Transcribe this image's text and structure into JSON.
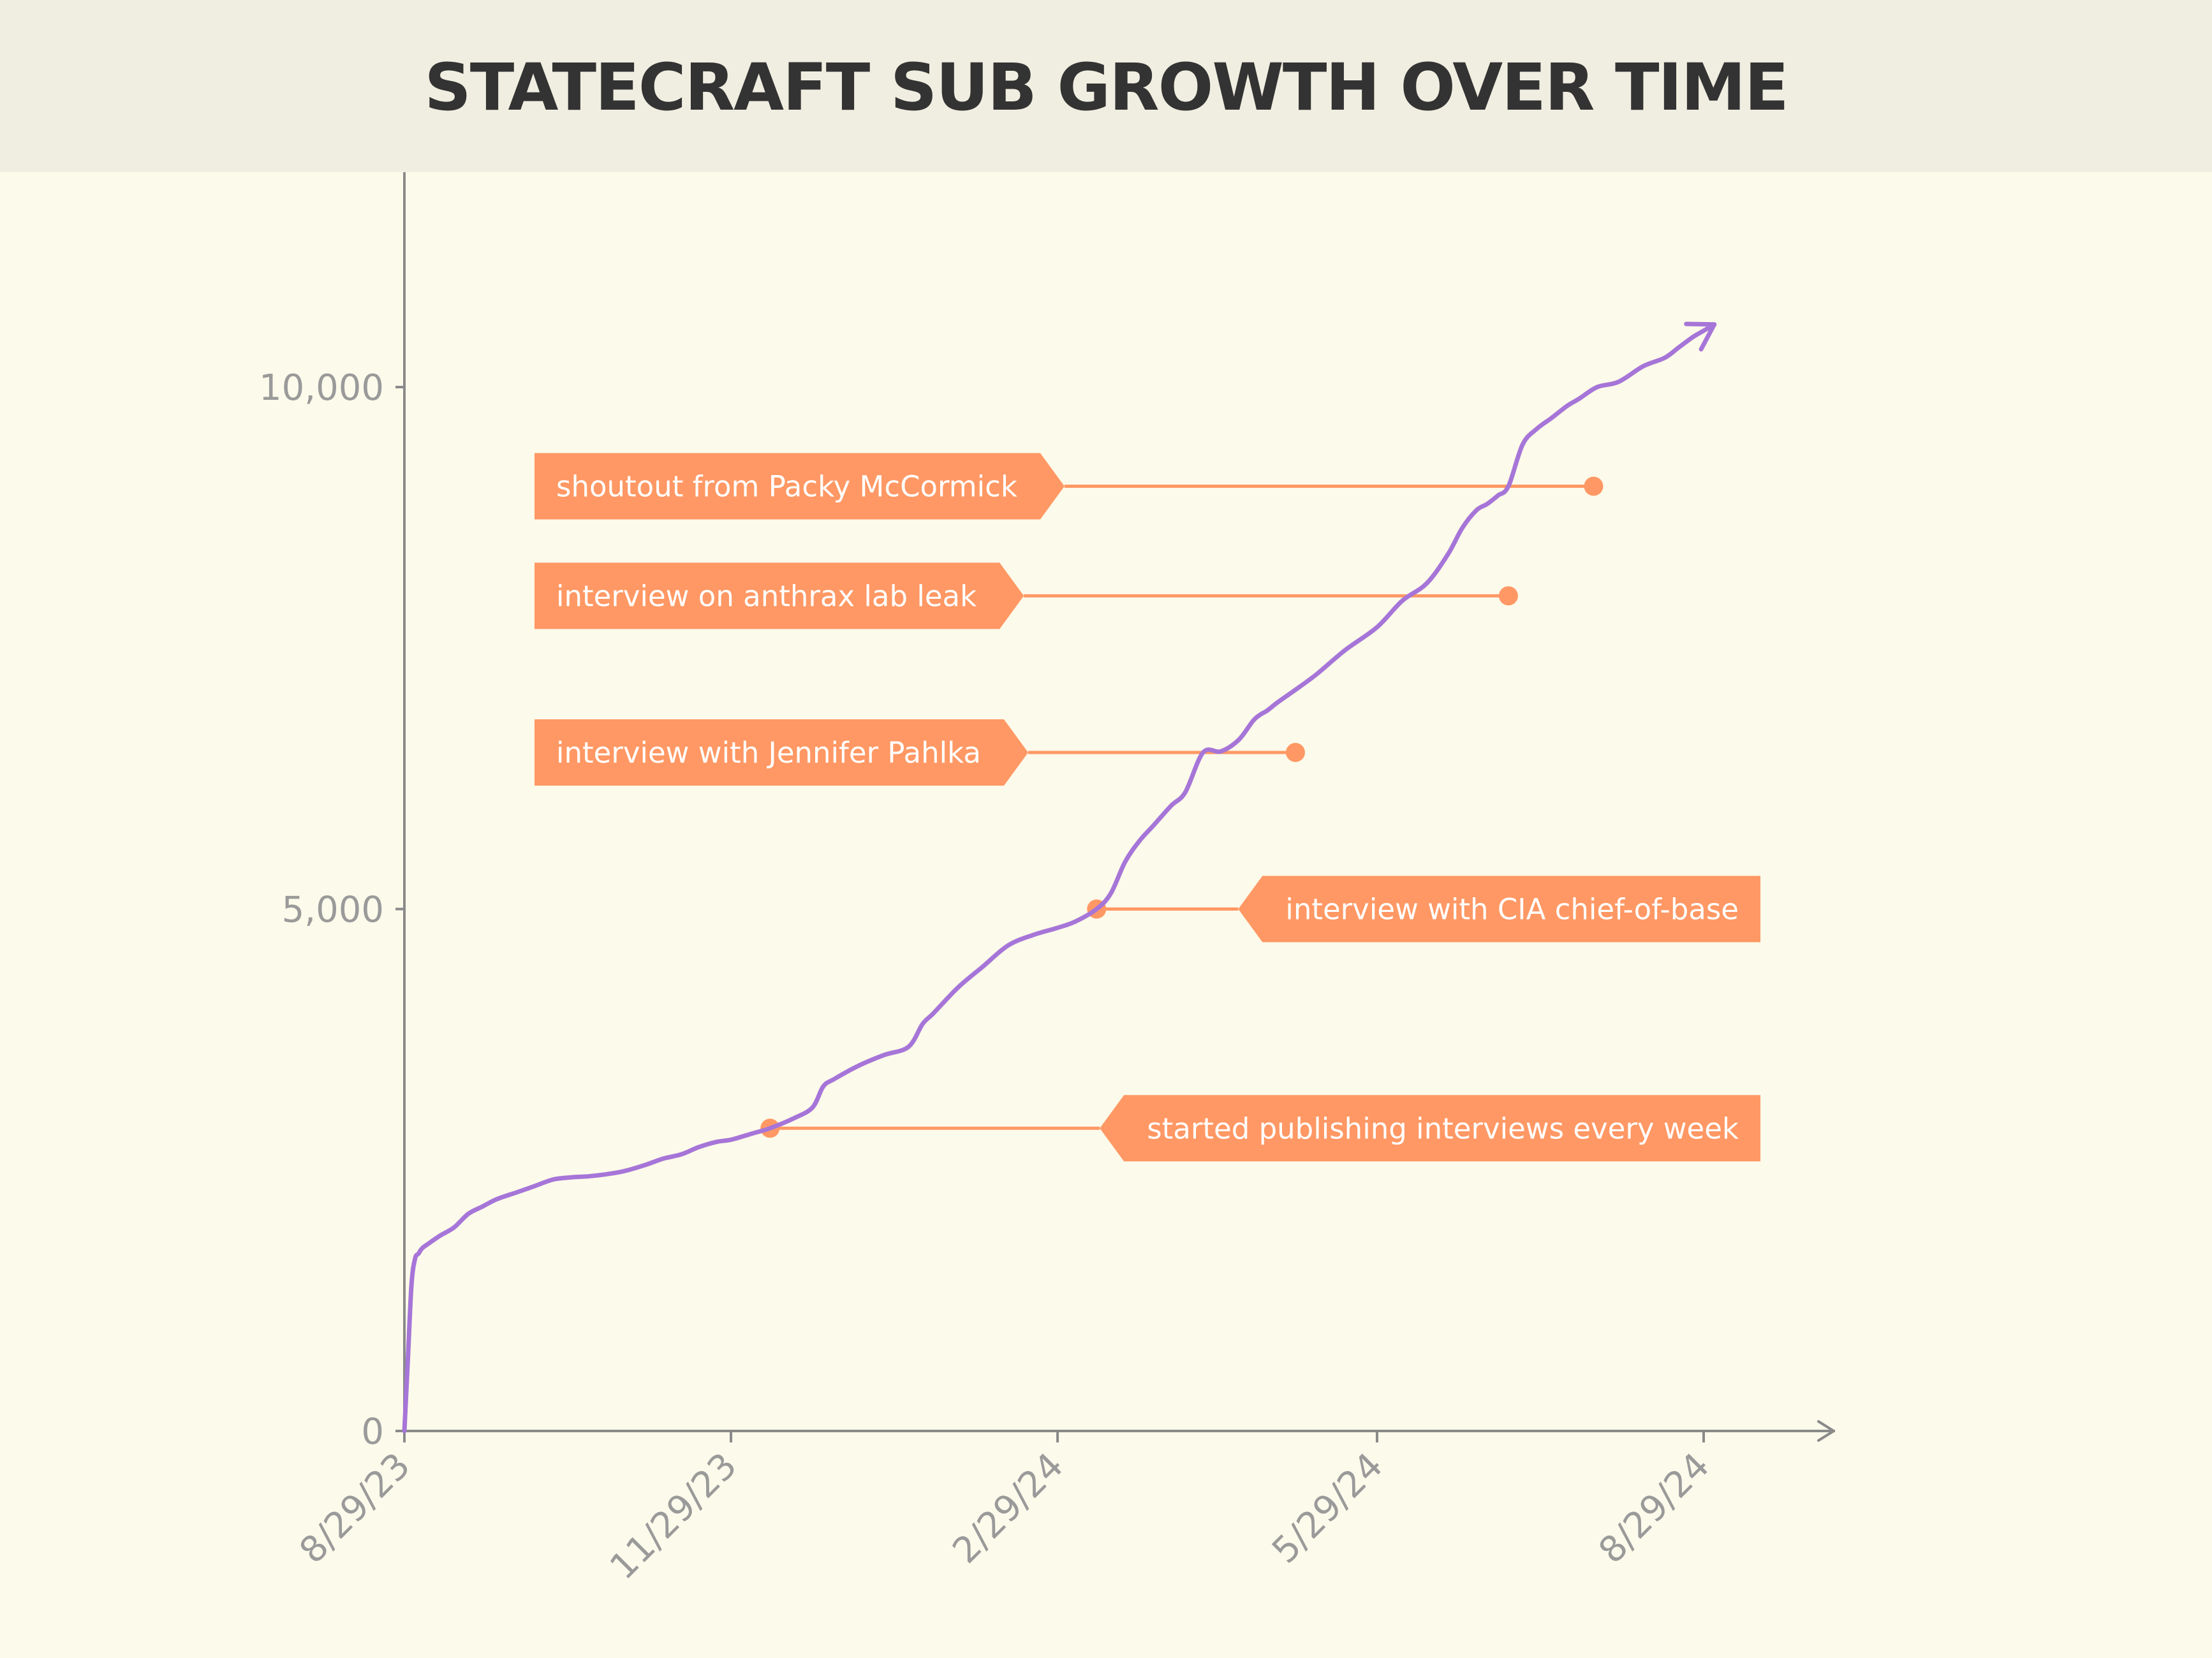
{
  "chart_data": {
    "type": "line",
    "title": "STATECRAFT SUB GROWTH OVER TIME",
    "xlabel": "",
    "ylabel": "",
    "xlim": [
      "2023-08-29",
      "2024-10-05"
    ],
    "ylim": [
      0,
      12500
    ],
    "x_ticks": [
      "2023-08-29",
      "2023-11-29",
      "2024-02-29",
      "2024-05-29",
      "2024-08-29"
    ],
    "x_tick_labels": [
      "8/29/23",
      "11/29/23",
      "2/29/24",
      "5/29/24",
      "8/29/24"
    ],
    "y_ticks": [
      0,
      5000,
      10000
    ],
    "y_tick_labels": [
      "0",
      "5,000",
      "10,000"
    ],
    "grid": false,
    "legend": "none",
    "colors": {
      "line": "#A675D8",
      "annotation": "#FF9864",
      "axis": "#8A8A8A",
      "tick_text": "#9A9A9A",
      "title_band": "#F0EEE0",
      "background": "#FCFAEA",
      "title_text": "#333333"
    },
    "series": [
      {
        "x": [
          "2023-08-29",
          "2023-08-30",
          "2023-08-31",
          "2023-09-01",
          "2023-09-02",
          "2023-09-03",
          "2023-09-05",
          "2023-09-08",
          "2023-09-12",
          "2023-09-16",
          "2023-09-20",
          "2023-09-24",
          "2023-09-30",
          "2023-10-05",
          "2023-10-10",
          "2023-10-15",
          "2023-10-20",
          "2023-10-25",
          "2023-10-30",
          "2023-11-05",
          "2023-11-10",
          "2023-11-15",
          "2023-11-20",
          "2023-11-25",
          "2023-11-29",
          "2023-12-05",
          "2023-12-10",
          "2023-12-17",
          "2023-12-22",
          "2023-12-25",
          "2023-12-28",
          "2024-01-04",
          "2024-01-11",
          "2024-01-18",
          "2024-01-22",
          "2024-01-25",
          "2024-02-01",
          "2024-02-08",
          "2024-02-15",
          "2024-02-22",
          "2024-02-29",
          "2024-03-05",
          "2024-03-11",
          "2024-03-15",
          "2024-03-19",
          "2024-03-23",
          "2024-03-27",
          "2024-04-01",
          "2024-04-05",
          "2024-04-10",
          "2024-04-15",
          "2024-04-20",
          "2024-04-24",
          "2024-04-26",
          "2024-04-28",
          "2024-05-01",
          "2024-05-06",
          "2024-05-12",
          "2024-05-20",
          "2024-05-29",
          "2024-06-05",
          "2024-06-12",
          "2024-06-18",
          "2024-06-22",
          "2024-06-26",
          "2024-06-29",
          "2024-07-02",
          "2024-07-05",
          "2024-07-09",
          "2024-07-13",
          "2024-07-17",
          "2024-07-20",
          "2024-07-22",
          "2024-07-25",
          "2024-07-30",
          "2024-08-05",
          "2024-08-12",
          "2024-08-18",
          "2024-08-22",
          "2024-08-26",
          "2024-08-29",
          "2024-09-01"
        ],
        "values": [
          0,
          700,
          1400,
          1650,
          1700,
          1750,
          1800,
          1870,
          1950,
          2080,
          2150,
          2220,
          2290,
          2350,
          2410,
          2430,
          2440,
          2460,
          2490,
          2550,
          2610,
          2650,
          2720,
          2770,
          2790,
          2850,
          2900,
          3000,
          3100,
          3300,
          3370,
          3500,
          3600,
          3680,
          3900,
          4000,
          4250,
          4450,
          4650,
          4750,
          4820,
          4880,
          5000,
          5150,
          5450,
          5650,
          5800,
          5990,
          6120,
          6500,
          6510,
          6620,
          6800,
          6860,
          6900,
          6980,
          7100,
          7250,
          7480,
          7700,
          7950,
          8120,
          8400,
          8650,
          8820,
          8880,
          8960,
          9050,
          9450,
          9600,
          9700,
          9780,
          9830,
          9890,
          10000,
          10050,
          10200,
          10280,
          10380,
          10480,
          10540,
          10600
        ]
      }
    ],
    "annotations": [
      {
        "date": "2023-12-10",
        "value": 2900,
        "label": "started publishing interviews every week"
      },
      {
        "date": "2024-03-11",
        "value": 5000,
        "label": "interview with CIA chief-of-base"
      },
      {
        "date": "2024-05-06",
        "value": 6500,
        "label": "interview with Jennifer Pahlka"
      },
      {
        "date": "2024-07-05",
        "value": 8000,
        "label": "interview on anthrax lab leak"
      },
      {
        "date": "2024-07-29",
        "value": 9050,
        "label": "shoutout from Packy McCormick"
      }
    ]
  }
}
